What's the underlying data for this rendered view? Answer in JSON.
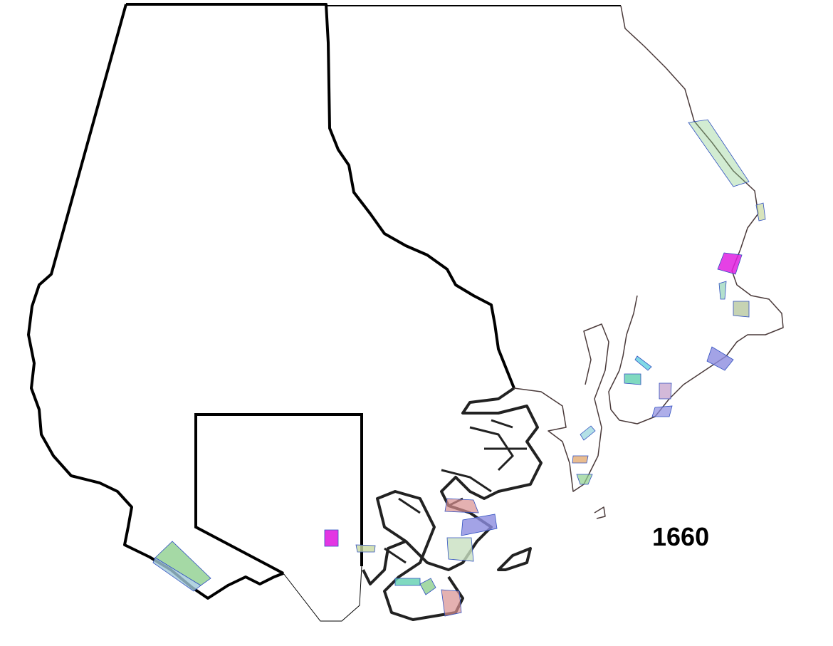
{
  "map": {
    "year_label": "1660",
    "colors": {
      "county_boundary": "#000000",
      "coastline": "#4a3a3a",
      "patch_green": "#8fd08f",
      "patch_magenta": "#e020e0",
      "patch_blue": "#8c8ce0",
      "patch_pink": "#d89090",
      "patch_teal": "#60d0b0",
      "patch_tan": "#c8d8a0"
    }
  }
}
